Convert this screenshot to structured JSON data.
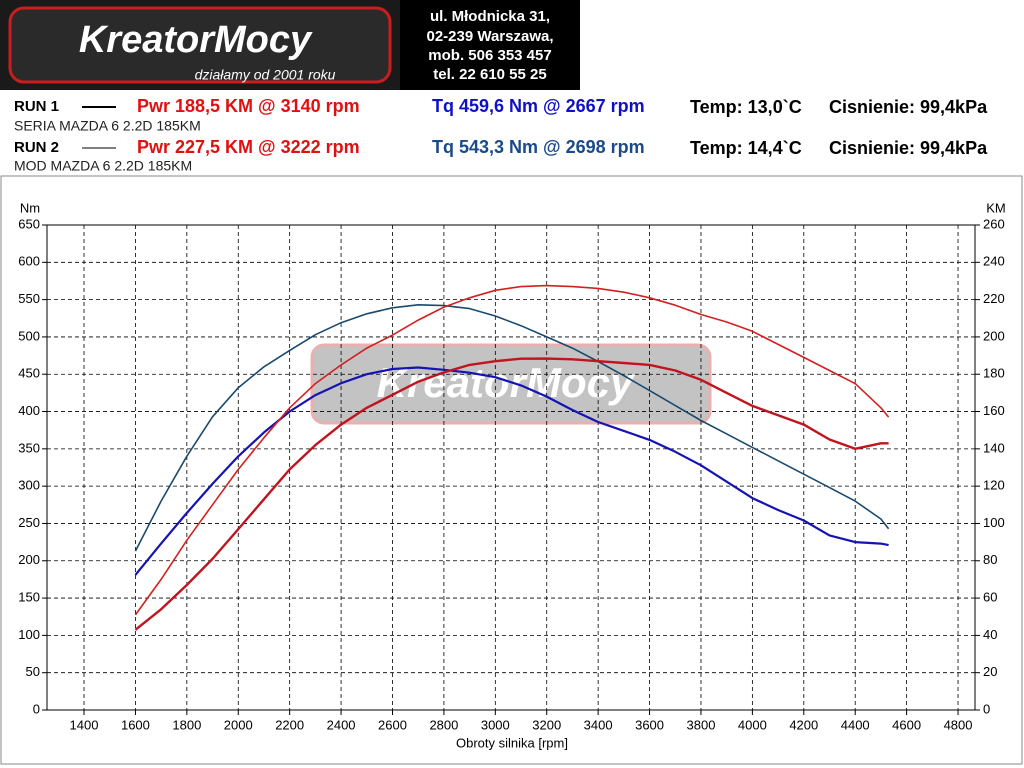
{
  "header": {
    "logo": {
      "name": "KreatorMocy",
      "slogan": "działamy od 2001 roku"
    },
    "address": [
      "ul. Młodnicka 31,",
      "02-239  Warszawa,",
      "mob.  506 353 457",
      "tel.  22 610 55 25"
    ]
  },
  "runs": [
    {
      "label": "RUN 1",
      "power": "Pwr  188,5 KM @ 3140 rpm",
      "torque": "Tq 459,6 Nm @ 2667 rpm",
      "temp": "Temp: 13,0`C",
      "pressure": "Cisnienie: 99,4kPa",
      "description": "SERIA  MAZDA 6 2.2D 185KM",
      "torque_color": "#1010c8"
    },
    {
      "label": "RUN 2",
      "power": "Pwr  227,5 KM @ 3222 rpm",
      "torque": "Tq 543,3 Nm @ 2698 rpm",
      "temp": "Temp: 14,4`C",
      "pressure": "Cisnienie: 99,4kPa",
      "description": "MOD MAZDA 6 2.2D 185KM",
      "torque_color": "#1a4a8a"
    }
  ],
  "chart_data": {
    "type": "line",
    "y_label": "Nm",
    "y2_label": "KM",
    "x_label": "Obroty silnika [rpm]",
    "x": [
      1600,
      1700,
      1800,
      1900,
      2000,
      2100,
      2200,
      2300,
      2400,
      2500,
      2600,
      2700,
      2800,
      2900,
      3000,
      3100,
      3200,
      3300,
      3400,
      3500,
      3600,
      3700,
      3800,
      3900,
      4000,
      4100,
      4200,
      4300,
      4400,
      4500,
      4530
    ],
    "xlim": [
      1256,
      4866
    ],
    "xticks": [
      1400,
      1600,
      1800,
      2000,
      2200,
      2400,
      2600,
      2800,
      3000,
      3200,
      3400,
      3600,
      3800,
      4000,
      4200,
      4400,
      4600,
      4800
    ],
    "ylim": [
      0,
      650
    ],
    "yticks": [
      0,
      50,
      100,
      150,
      200,
      250,
      300,
      350,
      400,
      450,
      500,
      550,
      600,
      650
    ],
    "y2lim": [
      0,
      260
    ],
    "y2ticks": [
      0,
      20,
      40,
      60,
      80,
      100,
      120,
      140,
      160,
      180,
      200,
      220,
      240,
      260
    ],
    "grid": true,
    "series": [
      {
        "color": "#1414b4",
        "values": [
          181,
          223,
          264,
          303,
          340,
          372,
          400,
          422,
          438,
          450,
          457,
          459,
          456,
          452,
          446,
          435,
          420,
          402,
          386,
          374,
          362,
          346,
          328,
          306,
          284,
          268,
          254,
          234,
          225,
          223,
          221
        ]
      },
      {
        "color": "#1a4a6e",
        "values": [
          213,
          280,
          340,
          393,
          432,
          460,
          482,
          503,
          519,
          531,
          539,
          543,
          542,
          538,
          528,
          515,
          500,
          485,
          467,
          448,
          428,
          408,
          388,
          370,
          352,
          334,
          316,
          298,
          280,
          256,
          243
        ]
      },
      {
        "color": "#c0141e",
        "axis": "y2",
        "values": [
          43,
          54,
          67,
          81,
          97,
          113,
          129,
          142,
          153,
          162,
          169,
          176,
          181,
          185,
          187,
          188.3,
          188.4,
          188,
          187,
          186,
          185,
          182,
          177,
          170,
          163,
          158,
          153,
          145,
          140,
          143,
          143
        ]
      },
      {
        "color": "#d42020",
        "axis": "y2",
        "values": [
          51,
          70,
          91,
          110,
          129,
          146,
          162,
          175,
          185,
          194,
          201,
          209,
          216,
          221,
          225,
          227,
          227.5,
          227,
          226,
          224,
          221,
          217,
          212,
          208,
          203,
          196,
          189,
          182,
          175,
          162,
          157
        ]
      }
    ]
  }
}
